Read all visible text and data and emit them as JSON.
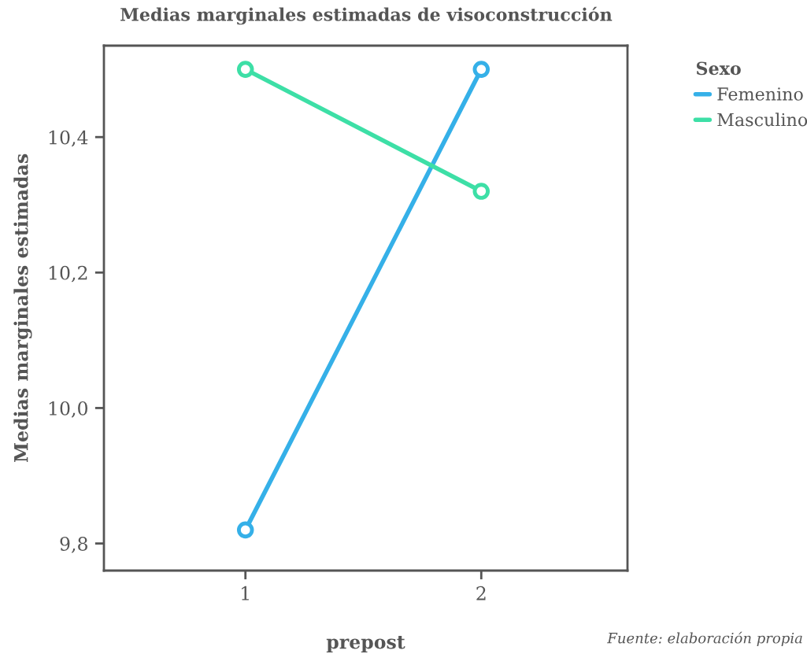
{
  "chart_data": {
    "type": "line",
    "title": "Medias marginales estimadas de visoconstrucción",
    "xlabel": "prepost",
    "ylabel": "Medias marginales estimadas",
    "legend_title": "Sexo",
    "x": [
      1,
      2
    ],
    "xlim": [
      0.4,
      2.62
    ],
    "xticks": [
      1,
      2
    ],
    "ylim": [
      9.76,
      10.535
    ],
    "yticks": [
      {
        "value": 9.8,
        "label": "9,8"
      },
      {
        "value": 10.0,
        "label": "10,0"
      },
      {
        "value": 10.2,
        "label": "10,2"
      },
      {
        "value": 10.4,
        "label": "10,4"
      }
    ],
    "series": [
      {
        "name": "Femenino",
        "color": "#35b0e8",
        "values": [
          9.82,
          10.5
        ]
      },
      {
        "name": "Masculino",
        "color": "#3ddfa6",
        "values": [
          10.5,
          10.32
        ]
      }
    ],
    "marker": "circle",
    "line_style": "solid",
    "grid": false,
    "legend": "top right",
    "annotations": [
      "Fuente: elaboración propia"
    ]
  }
}
